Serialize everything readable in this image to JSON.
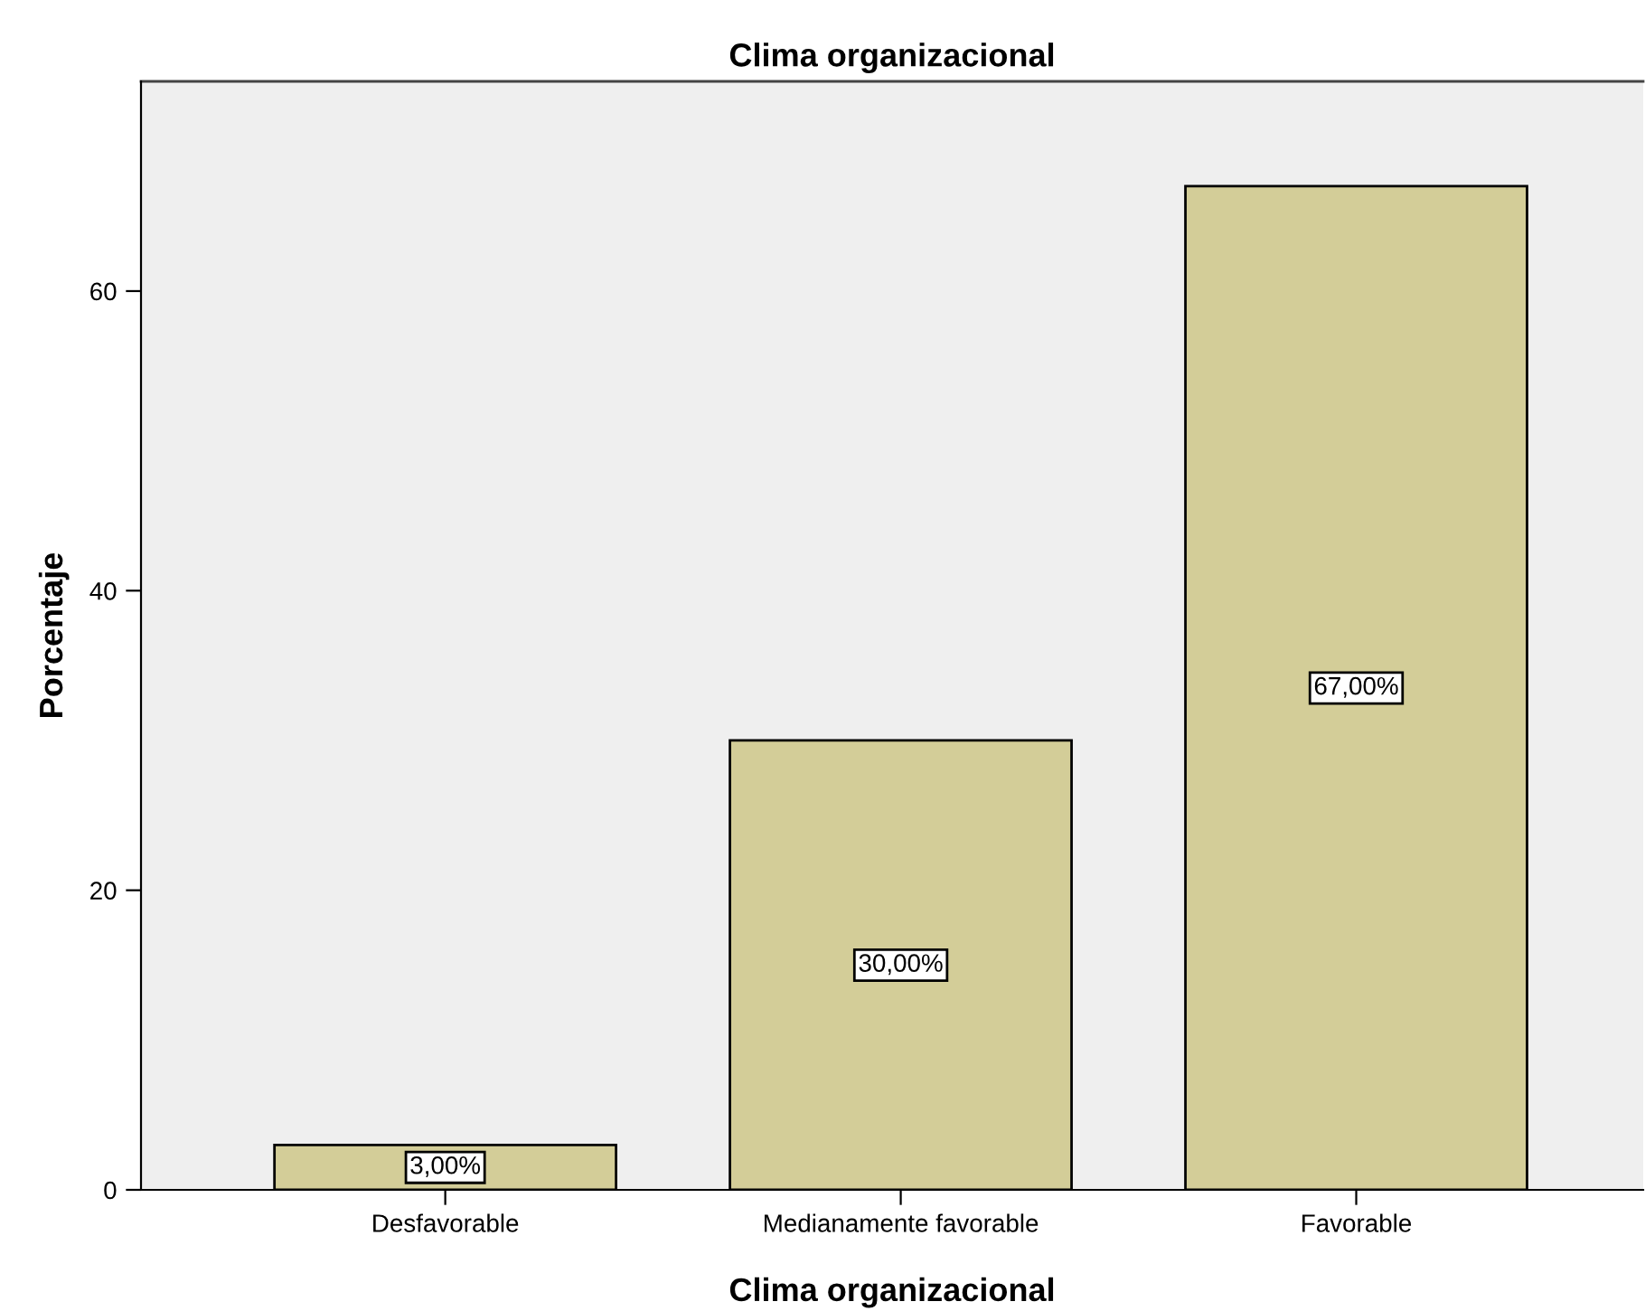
{
  "chart_data": {
    "type": "bar",
    "title": "Clima organizacional",
    "xlabel": "Clima organizacional",
    "ylabel": "Porcentaje",
    "categories": [
      "Desfavorable",
      "Medianamente favorable",
      "Favorable"
    ],
    "values": [
      3,
      30,
      67
    ],
    "color": "#d3cd98",
    "value_labels": [
      "3,00%",
      "30,00%",
      "67,00%"
    ],
    "ylim": [
      0,
      74
    ],
    "yticks": [
      0,
      20,
      40,
      60
    ],
    "grid": false,
    "legend": false
  }
}
